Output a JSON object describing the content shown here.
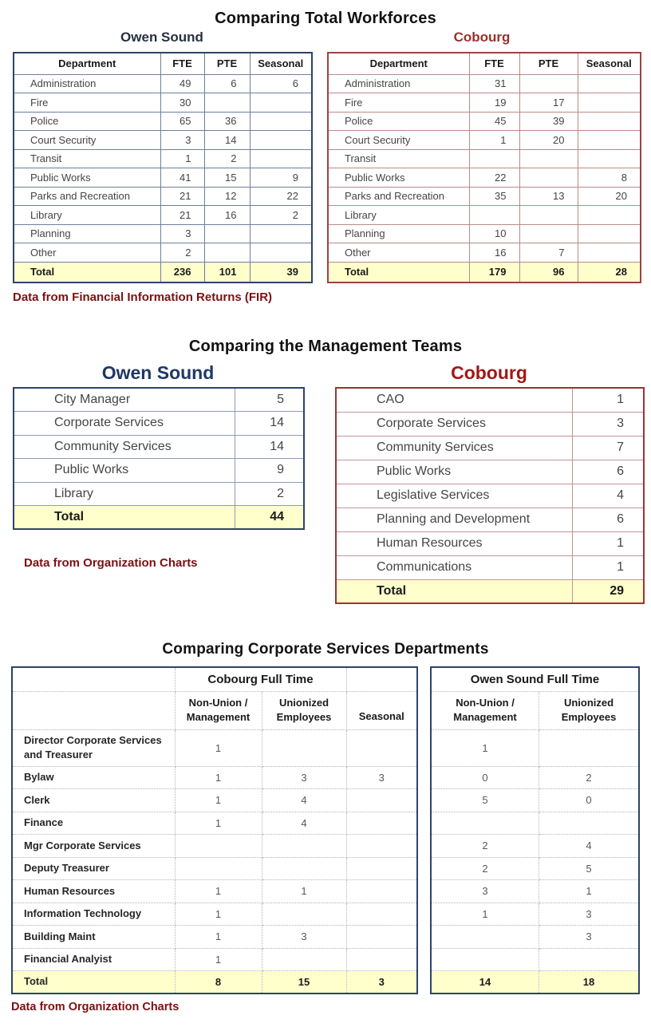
{
  "colors": {
    "owen_navy": "#1F3864",
    "cobourg_red": "#9C1B1B",
    "table_border_navy": "#2E4369",
    "table_border_brick": "#9C4341",
    "total_row_yellow": "#FFFFCC",
    "source_maroon": "#7C1012"
  },
  "workforce": {
    "title": "Comparing Total Workforces",
    "source": "Data from Financial Information Returns (FIR)",
    "owen": {
      "heading": "Owen Sound",
      "columns": [
        "Department",
        "FTE",
        "PTE",
        "Seasonal"
      ],
      "rows": [
        [
          "Administration",
          "49",
          "6",
          "6"
        ],
        [
          "Fire",
          "30",
          "",
          ""
        ],
        [
          "Police",
          "65",
          "36",
          ""
        ],
        [
          "Court Security",
          "3",
          "14",
          ""
        ],
        [
          "Transit",
          "1",
          "2",
          ""
        ],
        [
          "Public Works",
          "41",
          "15",
          "9"
        ],
        [
          "Parks and Recreation",
          "21",
          "12",
          "22"
        ],
        [
          "Library",
          "21",
          "16",
          "2"
        ],
        [
          "Planning",
          "3",
          "",
          ""
        ],
        [
          "Other",
          "2",
          "",
          ""
        ]
      ],
      "total": [
        "Total",
        "236",
        "101",
        "39"
      ]
    },
    "cobourg": {
      "heading": "Cobourg",
      "columns": [
        "Department",
        "FTE",
        "PTE",
        "Seasonal"
      ],
      "rows": [
        [
          "Administration",
          "31",
          "",
          ""
        ],
        [
          "Fire",
          "19",
          "17",
          ""
        ],
        [
          "Police",
          "45",
          "39",
          ""
        ],
        [
          "Court Security",
          "1",
          "20",
          ""
        ],
        [
          "Transit",
          "",
          "",
          ""
        ],
        [
          "Public Works",
          "22",
          "",
          "8"
        ],
        [
          "Parks and Recreation",
          "35",
          "13",
          "20"
        ],
        [
          "Library",
          "",
          "",
          ""
        ],
        [
          "Planning",
          "10",
          "",
          ""
        ],
        [
          "Other",
          "16",
          "7",
          ""
        ]
      ],
      "total": [
        "Total",
        "179",
        "96",
        "28"
      ]
    }
  },
  "management": {
    "title": "Comparing the Management Teams",
    "source": "Data from Organization Charts",
    "owen": {
      "heading": "Owen Sound",
      "rows": [
        [
          "City Manager",
          "5"
        ],
        [
          "Corporate Services",
          "14"
        ],
        [
          "Community Services",
          "14"
        ],
        [
          "Public Works",
          "9"
        ],
        [
          "Library",
          "2"
        ]
      ],
      "total": [
        "Total",
        "44"
      ]
    },
    "cobourg": {
      "heading": "Cobourg",
      "rows": [
        [
          "CAO",
          "1"
        ],
        [
          "Corporate Services",
          "3"
        ],
        [
          "Community Services",
          "7"
        ],
        [
          "Public Works",
          "6"
        ],
        [
          "Legislative Services",
          "4"
        ],
        [
          "Planning and Development",
          "6"
        ],
        [
          "Human Resources",
          "1"
        ],
        [
          "Communications",
          "1"
        ]
      ],
      "total": [
        "Total",
        "29"
      ]
    }
  },
  "corporate": {
    "title": "Comparing Corporate Services Departments",
    "source": "Data from Organization Charts",
    "cobourg": {
      "group_header": "Cobourg Full Time",
      "columns": [
        "Non-Union / Management",
        "Unionized Employees",
        "Seasonal"
      ],
      "rows": [
        [
          "Director Corporate Services and Treasurer",
          "1",
          "",
          ""
        ],
        [
          "Bylaw",
          "1",
          "3",
          "3"
        ],
        [
          "Clerk",
          "1",
          "4",
          ""
        ],
        [
          "Finance",
          "1",
          "4",
          ""
        ],
        [
          "Mgr Corporate Services",
          "",
          "",
          ""
        ],
        [
          "Deputy Treasurer",
          "",
          "",
          ""
        ],
        [
          "Human Resources",
          "1",
          "1",
          ""
        ],
        [
          "Information Technology",
          "1",
          "",
          ""
        ],
        [
          "Building Maint",
          "1",
          "3",
          ""
        ],
        [
          "Financial Analyist",
          "1",
          "",
          ""
        ]
      ],
      "total": [
        "Total",
        "8",
        "15",
        "3"
      ]
    },
    "owen": {
      "group_header": "Owen Sound Full Time",
      "columns": [
        "Non-Union / Management",
        "Unionized Employees"
      ],
      "rows": [
        [
          "1",
          ""
        ],
        [
          "0",
          "2"
        ],
        [
          "5",
          "0"
        ],
        [
          "",
          ""
        ],
        [
          "2",
          "4"
        ],
        [
          "2",
          "5"
        ],
        [
          "3",
          "1"
        ],
        [
          "1",
          "3"
        ],
        [
          "",
          "3"
        ],
        [
          "",
          ""
        ]
      ],
      "total": [
        "14",
        "18"
      ]
    }
  }
}
